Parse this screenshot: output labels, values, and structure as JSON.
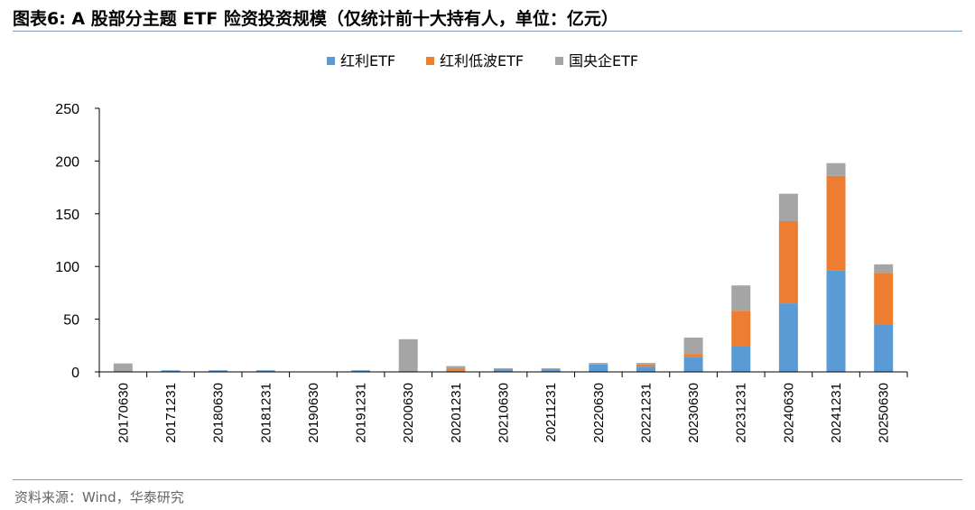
{
  "header": {
    "title": "图表6:  A 股部分主题 ETF 险资投资规模（仅统计前十大持有人，单位：亿元）"
  },
  "footer": {
    "source": "资料来源：Wind，华泰研究"
  },
  "colors": {
    "rule": "#7f9fc0"
  },
  "chart_data": {
    "type": "bar",
    "stacked": true,
    "categories": [
      "20170630",
      "20171231",
      "20180630",
      "20181231",
      "20190630",
      "20191231",
      "20200630",
      "20201231",
      "20210630",
      "20211231",
      "20220630",
      "20221231",
      "20230630",
      "20231231",
      "20240630",
      "20241231",
      "20250630"
    ],
    "series": [
      {
        "name": "红利ETF",
        "color": "#5b9bd5",
        "values": [
          0,
          1.5,
          1.5,
          1.5,
          0,
          1.5,
          0,
          1,
          2.5,
          2.5,
          7,
          5,
          14,
          24,
          65,
          96,
          45
        ]
      },
      {
        "name": "红利低波ETF",
        "color": "#ed7d31",
        "values": [
          0,
          0,
          0,
          0,
          0,
          0,
          0,
          2,
          0,
          0,
          0,
          2,
          3,
          34,
          78,
          90,
          49
        ]
      },
      {
        "name": "国央企ETF",
        "color": "#a5a5a5",
        "values": [
          8,
          0,
          0,
          0,
          0,
          0,
          31,
          2.5,
          1,
          1,
          1.5,
          1.5,
          15.5,
          24,
          26,
          12,
          8
        ]
      }
    ],
    "ylim": [
      0,
      250
    ],
    "yticks": [
      0,
      50,
      100,
      150,
      200,
      250
    ],
    "legend_position": "top-center",
    "grid": false
  }
}
